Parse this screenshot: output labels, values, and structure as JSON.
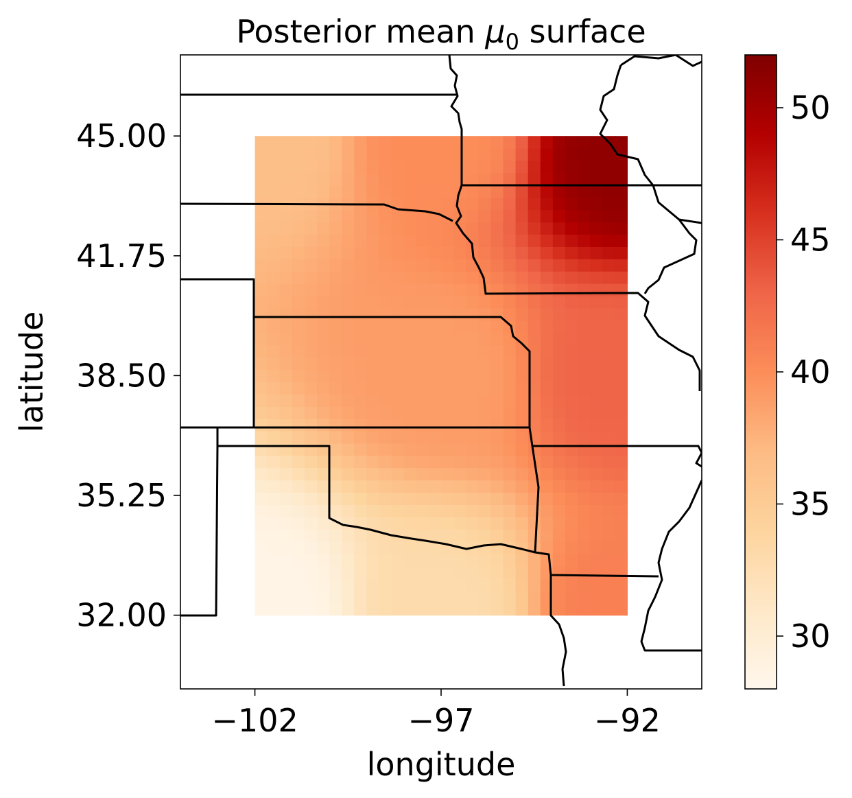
{
  "chart_data": {
    "type": "heatmap",
    "title": "Posterior mean μ0 surface",
    "title_parts": {
      "prefix": "Posterior mean ",
      "symbol": "μ",
      "subscript": "0",
      "suffix": " surface"
    },
    "xlabel": "longitude",
    "ylabel": "latitude",
    "x_ticks": [
      -102,
      -97,
      -92
    ],
    "x_tick_labels": [
      "−102",
      "−97",
      "−92"
    ],
    "y_ticks": [
      32.0,
      35.25,
      38.5,
      41.75,
      45.0
    ],
    "y_tick_labels": [
      "32.00",
      "35.25",
      "38.50",
      "41.75",
      "45.00"
    ],
    "xlim": [
      -104,
      -90
    ],
    "ylim": [
      30,
      47.2
    ],
    "grid": false,
    "data_extent": {
      "lon": [
        -102,
        -92
      ],
      "lat": [
        32,
        45
      ]
    },
    "grid_size": {
      "nx": 30,
      "ny": 39
    },
    "colormap": "OrRd",
    "colormap_stops": [
      "#fff7ec",
      "#fee8c8",
      "#fdd49e",
      "#fdbb84",
      "#fc8d59",
      "#ef6548",
      "#d7301f",
      "#b30000",
      "#7f0000"
    ],
    "colorbar": {
      "range": [
        28,
        52
      ],
      "ticks": [
        30,
        35,
        40,
        45,
        50
      ],
      "tick_labels": [
        "30",
        "35",
        "40",
        "45",
        "50"
      ]
    },
    "value_samples": [
      {
        "lon": -101.8,
        "lat": 32.2,
        "value": 28.5
      },
      {
        "lon": -101.8,
        "lat": 45.0,
        "value": 36.5
      },
      {
        "lon": -97.0,
        "lat": 32.2,
        "value": 33.0
      },
      {
        "lon": -97.0,
        "lat": 38.5,
        "value": 39.0
      },
      {
        "lon": -97.0,
        "lat": 45.0,
        "value": 40.0
      },
      {
        "lon": -92.2,
        "lat": 32.2,
        "value": 41.0
      },
      {
        "lon": -92.2,
        "lat": 38.5,
        "value": 43.0
      },
      {
        "lon": -92.2,
        "lat": 44.5,
        "value": 51.0
      }
    ],
    "boundary_color": "#000000"
  }
}
